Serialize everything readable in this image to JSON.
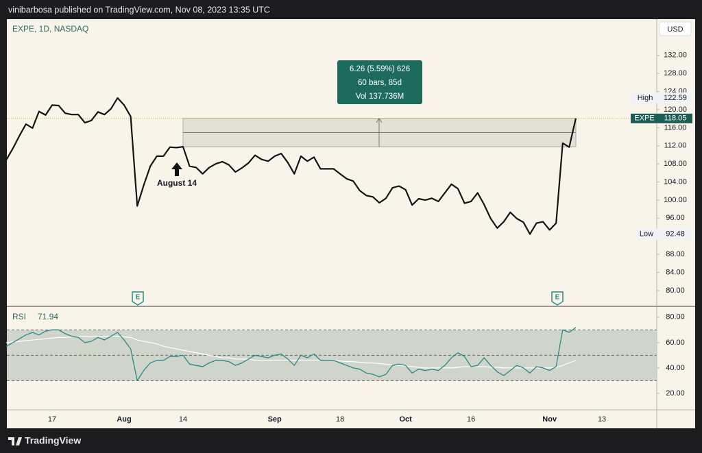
{
  "header": "vinibarbosa published on TradingView.com, Nov 08, 2023 13:35 UTC",
  "footer": "TradingView",
  "chart_data": [
    {
      "type": "line",
      "title": "EXPE, 1D, NASDAQ",
      "currency": "USD",
      "color": "#131313",
      "categories": [
        null,
        null,
        null,
        null,
        null,
        null,
        null,
        "17",
        null,
        null,
        null,
        null,
        null,
        null,
        null,
        null,
        null,
        null,
        "Aug",
        null,
        null,
        null,
        null,
        null,
        null,
        null,
        null,
        "14",
        null,
        null,
        null,
        null,
        null,
        null,
        null,
        null,
        null,
        null,
        null,
        null,
        null,
        "Sep",
        null,
        null,
        null,
        null,
        null,
        null,
        null,
        null,
        null,
        "18",
        null,
        null,
        null,
        null,
        null,
        null,
        null,
        null,
        null,
        "Oct",
        null,
        null,
        null,
        null,
        null,
        null,
        null,
        null,
        null,
        "16",
        null,
        null,
        null,
        null,
        null,
        null,
        null,
        null,
        null,
        null,
        null,
        "Nov",
        null,
        null,
        null,
        null,
        null,
        null,
        null,
        "13",
        null,
        null,
        null,
        null,
        null,
        null,
        null,
        null
      ],
      "values": [
        108.9,
        111.4,
        114.2,
        116.8,
        115.9,
        119.6,
        118.8,
        121.0,
        120.9,
        119.2,
        118.9,
        118.9,
        117.1,
        117.6,
        119.5,
        118.9,
        120.2,
        122.59,
        121.0,
        118.5,
        98.7,
        103.3,
        107.5,
        109.7,
        109.7,
        111.7,
        111.6,
        111.8,
        107.5,
        107.2,
        105.8,
        107.2,
        108.0,
        108.5,
        107.8,
        106.2,
        107.1,
        108.2,
        109.9,
        109.0,
        108.6,
        109.7,
        110.3,
        108.3,
        105.8,
        109.7,
        108.6,
        109.5,
        106.9,
        106.9,
        106.9,
        105.8,
        104.7,
        104.2,
        102.1,
        101.0,
        100.7,
        99.4,
        100.4,
        102.7,
        103.1,
        102.3,
        98.9,
        100.3,
        100.0,
        100.4,
        99.7,
        101.6,
        103.5,
        102.5,
        99.3,
        99.7,
        101.6,
        99.0,
        95.9,
        93.8,
        95.2,
        97.3,
        95.9,
        95.1,
        92.48,
        94.9,
        95.2,
        93.4,
        94.9,
        112.6,
        111.7,
        118.05,
        null,
        null,
        null,
        null,
        null,
        null,
        null,
        null,
        null,
        null,
        null,
        null
      ],
      "ylim": [
        76.5,
        140
      ],
      "yticks": [
        {
          "value": 80,
          "label": "80.00"
        },
        {
          "value": 84,
          "label": "84.00"
        },
        {
          "value": 88,
          "label": "88.00"
        },
        {
          "value": 92,
          "label": "92.00"
        },
        {
          "value": 96,
          "label": "96.00"
        },
        {
          "value": 100,
          "label": "100.00"
        },
        {
          "value": 104,
          "label": "104.00"
        },
        {
          "value": 108,
          "label": "108.00"
        },
        {
          "value": 112,
          "label": "112.00"
        },
        {
          "value": 116,
          "label": "116.00"
        },
        {
          "value": 120,
          "label": "120.00"
        },
        {
          "value": 124,
          "label": "124.00"
        },
        {
          "value": 128,
          "label": "128.00"
        },
        {
          "value": 132,
          "label": "132.00"
        }
      ],
      "high_label": "High",
      "high": 122.59,
      "low_label": "Low",
      "low": 92.48,
      "symbol_tag": "EXPE",
      "annotation": "August 14",
      "earnings": [
        "E",
        "E"
      ],
      "measure": {
        "from": 111.79,
        "to": 118.05,
        "lines": [
          "6.26 (5.59%) 626",
          "60 bars, 85d",
          "Vol 137.736M"
        ]
      }
    },
    {
      "type": "line",
      "title": "RSI",
      "series": [
        {
          "name": "RSI",
          "color": "#2a8a82",
          "values": [
            57,
            60,
            63,
            66,
            68,
            66,
            69,
            70,
            70,
            67,
            65,
            64,
            60,
            61,
            64,
            62,
            65,
            68,
            62,
            55,
            30,
            38,
            44,
            46,
            46,
            49,
            49,
            50,
            43,
            42,
            41,
            44,
            46,
            46,
            45,
            42,
            44,
            47,
            50,
            49,
            48,
            50,
            51,
            47,
            42,
            50,
            48,
            51,
            46,
            46,
            46,
            44,
            42,
            40,
            39,
            36,
            35,
            33,
            35,
            42,
            43,
            42,
            36,
            39,
            38,
            39,
            38,
            42,
            48,
            52,
            49,
            41,
            42,
            48,
            42,
            37,
            34,
            38,
            42,
            40,
            36,
            41,
            40,
            38,
            41,
            70,
            68,
            71.94,
            null,
            null,
            null,
            null,
            null,
            null,
            null,
            null,
            null,
            null,
            null,
            null
          ]
        },
        {
          "color": "#ffffff",
          "values": [
            60,
            60.5,
            61,
            61.5,
            62,
            62.5,
            63,
            63.5,
            64,
            64,
            64.5,
            64.5,
            65,
            65,
            65,
            65,
            65,
            65,
            64.5,
            64,
            62,
            61,
            60,
            59,
            57,
            56,
            55,
            54,
            53,
            52,
            51,
            50,
            49,
            48,
            48,
            47,
            47,
            47,
            46,
            46,
            46,
            46,
            46,
            46,
            46,
            46,
            46,
            46,
            46,
            46,
            46,
            45.5,
            45,
            45,
            44.5,
            44,
            44,
            43.5,
            43,
            42.5,
            42,
            41.5,
            41,
            40.5,
            40,
            40,
            40,
            40,
            40,
            40.5,
            41,
            41,
            41,
            41,
            40.5,
            40.5,
            40,
            40,
            40,
            40,
            40,
            40,
            40,
            40,
            40.5,
            42,
            44,
            46,
            null,
            null,
            null,
            null,
            null,
            null,
            null,
            null,
            null,
            null,
            null,
            null
          ]
        }
      ],
      "ylim": [
        7,
        88
      ],
      "bands": [
        30,
        50,
        70
      ],
      "yticks": [
        {
          "value": 20,
          "label": "20.00"
        },
        {
          "value": 40,
          "label": "40.00"
        },
        {
          "value": 60,
          "label": "60.00"
        },
        {
          "value": 80,
          "label": "80.00"
        }
      ]
    }
  ]
}
